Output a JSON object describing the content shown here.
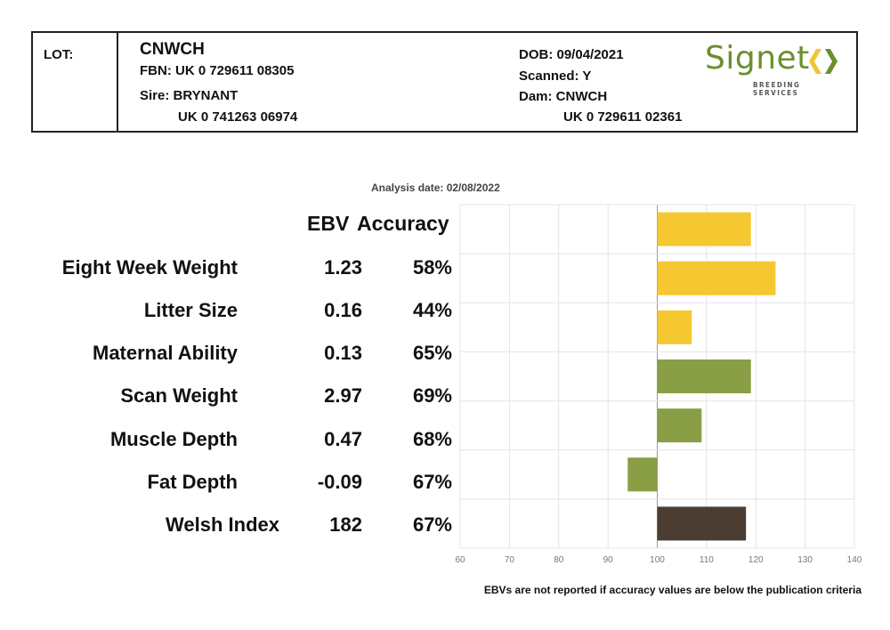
{
  "header": {
    "lot_label": "LOT:",
    "name": "CNWCH",
    "fbn": "FBN: UK 0 729611 08305",
    "sire": "Sire: BRYNANT",
    "sire_id": "UK 0 741263 06974",
    "dob": "DOB: 09/04/2021",
    "scanned": "Scanned: Y",
    "dam": "Dam: CNWCH",
    "dam_id": "UK 0 729611 02361"
  },
  "logo": {
    "text": "Signet",
    "subtext": "BREEDING SERVICES",
    "colors": {
      "green": "#6c8f2f",
      "yellow": "#f3c535"
    }
  },
  "analysis_date": "Analysis date: 02/08/2022",
  "columns": {
    "ebv": "EBV",
    "accuracy": "Accuracy"
  },
  "traits": [
    {
      "name": "Eight Week Weight",
      "ebv": "1.23",
      "accuracy": "58%"
    },
    {
      "name": "Litter Size",
      "ebv": "0.16",
      "accuracy": "44%"
    },
    {
      "name": "Maternal Ability",
      "ebv": "0.13",
      "accuracy": "65%"
    },
    {
      "name": "Scan Weight",
      "ebv": "2.97",
      "accuracy": "69%"
    },
    {
      "name": "Muscle Depth",
      "ebv": "0.47",
      "accuracy": "68%"
    },
    {
      "name": "Fat Depth",
      "ebv": "-0.09",
      "accuracy": "67%"
    },
    {
      "name": "Welsh Index",
      "ebv": "182",
      "accuracy": "67%"
    }
  ],
  "footnote": "EBVs are not reported if accuracy values are below the publication criteria",
  "chart_data": {
    "type": "bar",
    "orientation": "horizontal",
    "categories": [
      "Eight Week Weight",
      "Litter Size",
      "Maternal Ability",
      "Scan Weight",
      "Muscle Depth",
      "Fat Depth",
      "Welsh Index"
    ],
    "baseline": 100,
    "values": [
      119,
      124,
      107,
      119,
      109,
      94,
      118
    ],
    "bar_colors": [
      "#f5c832",
      "#f5c832",
      "#f5c832",
      "#8a9f45",
      "#8a9f45",
      "#8a9f45",
      "#4b3d31"
    ],
    "xlim": [
      60,
      140
    ],
    "xticks": [
      60,
      70,
      80,
      90,
      100,
      110,
      120,
      130,
      140
    ],
    "grid": true
  }
}
